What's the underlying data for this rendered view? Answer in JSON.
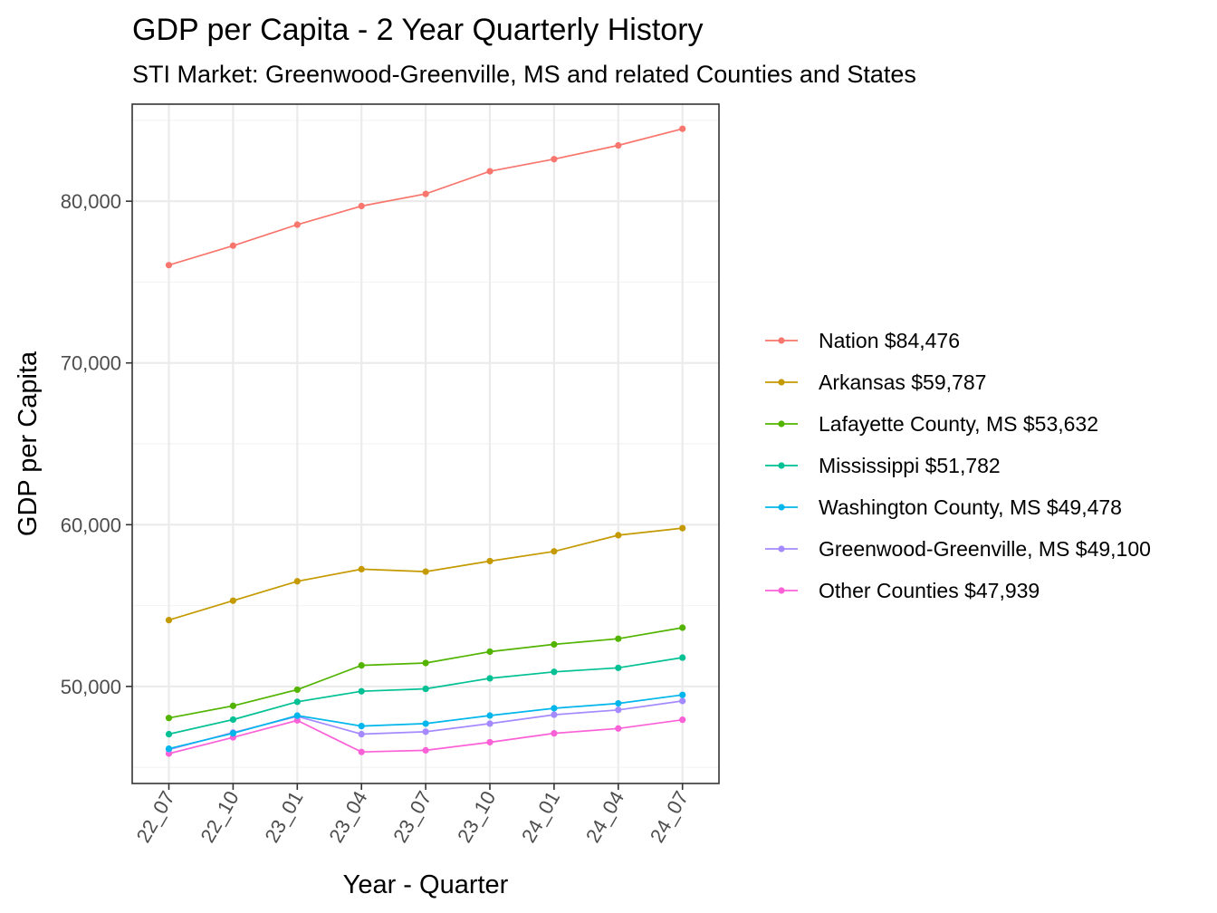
{
  "chart_data": {
    "type": "line",
    "title": "GDP per Capita - 2 Year Quarterly History",
    "subtitle": "STI Market: Greenwood-Greenville, MS and related Counties and States",
    "xlabel": "Year - Quarter",
    "ylabel": "GDP per Capita",
    "categories": [
      "22_07",
      "22_10",
      "23_01",
      "23_04",
      "23_07",
      "23_10",
      "24_01",
      "24_04",
      "24_07"
    ],
    "ylim": [
      44000,
      86000
    ],
    "y_ticks": [
      50000,
      60000,
      70000,
      80000
    ],
    "y_tick_labels": [
      "50,000",
      "60,000",
      "70,000",
      "80,000"
    ],
    "grid": true,
    "legend_position": "right",
    "series": [
      {
        "name": "Nation $84,476",
        "color": "#F8766D",
        "values": [
          76050,
          77250,
          78550,
          79700,
          80450,
          81850,
          82600,
          83450,
          84476
        ]
      },
      {
        "name": "Arkansas $59,787",
        "color": "#C49A00",
        "values": [
          54100,
          55300,
          56500,
          57250,
          57100,
          57750,
          58350,
          59350,
          59787
        ]
      },
      {
        "name": "Lafayette County, MS $53,632",
        "color": "#53B400",
        "values": [
          48050,
          48800,
          49800,
          51300,
          51450,
          52150,
          52600,
          52950,
          53632
        ]
      },
      {
        "name": "Mississippi $51,782",
        "color": "#00C094",
        "values": [
          47050,
          47950,
          49050,
          49700,
          49850,
          50500,
          50900,
          51150,
          51782
        ]
      },
      {
        "name": "Washington County, MS $49,478",
        "color": "#00B6EB",
        "values": [
          46150,
          47100,
          48200,
          47550,
          47700,
          48200,
          48650,
          48950,
          49478
        ]
      },
      {
        "name": "Greenwood-Greenville, MS $49,100",
        "color": "#A58AFF",
        "values": [
          46100,
          47150,
          48150,
          47050,
          47200,
          47700,
          48250,
          48550,
          49100
        ]
      },
      {
        "name": "Other Counties $47,939",
        "color": "#FB61D7",
        "values": [
          45850,
          46850,
          47900,
          45950,
          46050,
          46550,
          47100,
          47400,
          47939
        ]
      }
    ]
  }
}
